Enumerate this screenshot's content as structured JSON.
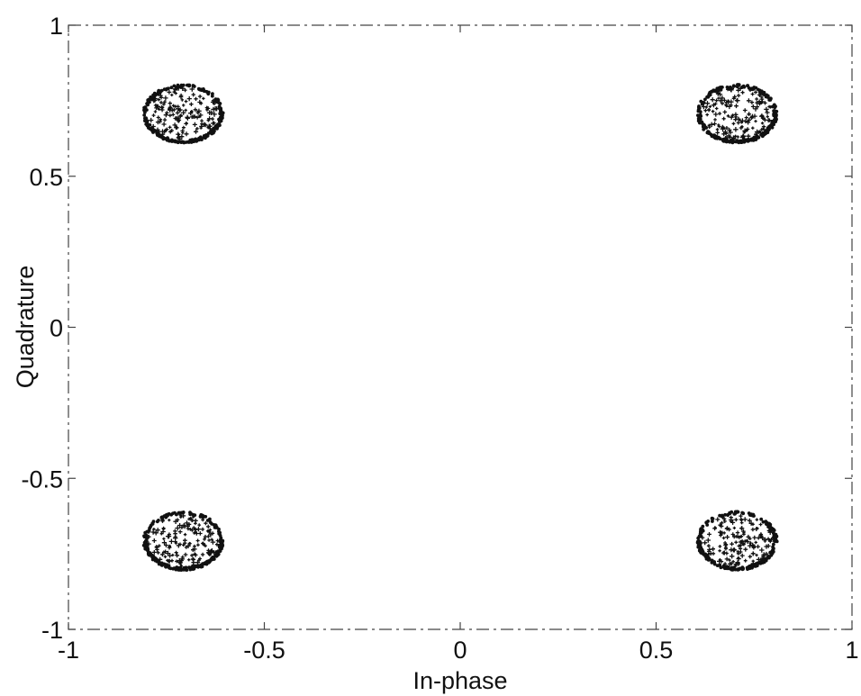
{
  "chart_data": {
    "type": "scatter",
    "title": "",
    "xlabel": "In-phase",
    "ylabel": "Quadrature",
    "xlim": [
      -1,
      1
    ],
    "ylim": [
      -1,
      1
    ],
    "xticks": [
      -1,
      -0.5,
      0,
      0.5,
      1
    ],
    "xtick_labels": [
      "-1",
      "-0.5",
      "0",
      "0.5",
      "1"
    ],
    "yticks": [
      -1,
      -0.5,
      0,
      0.5,
      1
    ],
    "ytick_labels": [
      "-1",
      "-0.5",
      "0",
      "0.5",
      "1"
    ],
    "grid": false,
    "marker_color": "#111111",
    "clusters": [
      {
        "center": [
          -0.707,
          0.707
        ],
        "radius_x": 0.1,
        "radius_y": 0.095
      },
      {
        "center": [
          0.707,
          0.707
        ],
        "radius_x": 0.1,
        "radius_y": 0.095
      },
      {
        "center": [
          -0.707,
          -0.707
        ],
        "radius_x": 0.1,
        "radius_y": 0.095
      },
      {
        "center": [
          0.707,
          -0.707
        ],
        "radius_x": 0.1,
        "radius_y": 0.095
      }
    ]
  }
}
